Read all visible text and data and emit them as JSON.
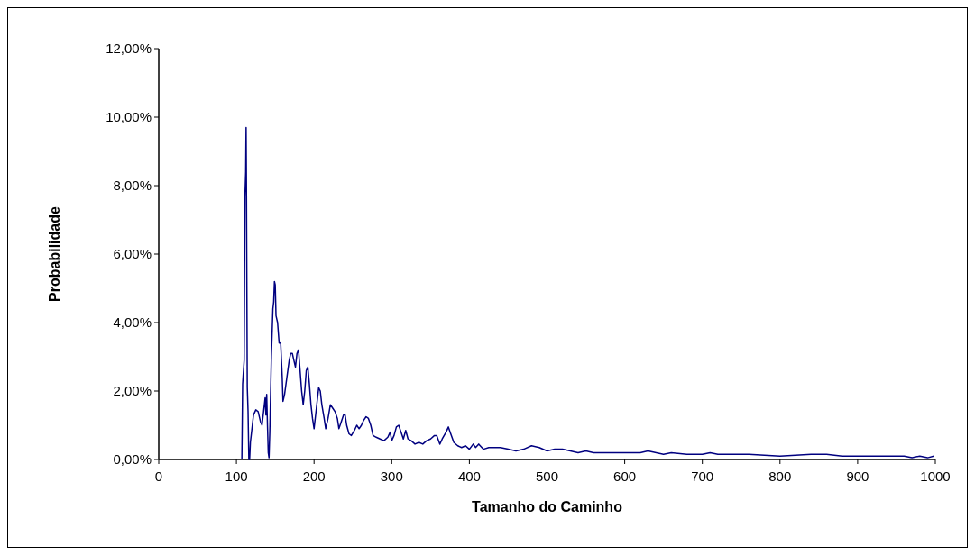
{
  "chart_data": {
    "type": "line",
    "xlabel": "Tamanho do Caminho",
    "ylabel": "Probabilidade",
    "xlim": [
      0,
      1000
    ],
    "xticks": [
      0,
      100,
      200,
      300,
      400,
      500,
      600,
      700,
      800,
      900,
      1000
    ],
    "ylim": [
      0,
      12
    ],
    "yticks": [
      {
        "value": 0,
        "label": "0,00%"
      },
      {
        "value": 2,
        "label": "2,00%"
      },
      {
        "value": 4,
        "label": "4,00%"
      },
      {
        "value": 6,
        "label": "6,00%"
      },
      {
        "value": 8,
        "label": "8,00%"
      },
      {
        "value": 10,
        "label": "10,00%"
      },
      {
        "value": 12,
        "label": "12,00%"
      }
    ],
    "grid": false,
    "marker": "none",
    "line_style": "solid",
    "series": [
      {
        "color": "#000080",
        "x": [
          107,
          108,
          110,
          111,
          112,
          112.5,
          113,
          114,
          115,
          116,
          117,
          118,
          120,
          122,
          125,
          128,
          131,
          133,
          135,
          137,
          138,
          139,
          140,
          141,
          142,
          143,
          145,
          147,
          148,
          149,
          150,
          151,
          153,
          155,
          157,
          159,
          160,
          162,
          165,
          168,
          170,
          172,
          174,
          176,
          178,
          180,
          182,
          184,
          186,
          188,
          190,
          192,
          194,
          196,
          198,
          200,
          203,
          206,
          208,
          210,
          213,
          215,
          218,
          221,
          224,
          227,
          230,
          232,
          235,
          238,
          240,
          242,
          245,
          248,
          252,
          255,
          258,
          261,
          264,
          267,
          270,
          273,
          276,
          280,
          285,
          290,
          295,
          298,
          300,
          303,
          306,
          309,
          312,
          315,
          318,
          321,
          325,
          330,
          335,
          340,
          345,
          350,
          355,
          358,
          362,
          365,
          370,
          373,
          376,
          380,
          385,
          390,
          395,
          400,
          405,
          408,
          412,
          418,
          425,
          440,
          450,
          460,
          470,
          480,
          490,
          500,
          510,
          520,
          530,
          540,
          550,
          560,
          580,
          600,
          620,
          630,
          650,
          660,
          680,
          700,
          710,
          720,
          760,
          800,
          840,
          860,
          880,
          960,
          970,
          980,
          990,
          998
        ],
        "values": [
          0,
          2.2,
          2.9,
          7.7,
          8.4,
          9.7,
          7.7,
          2.1,
          1.4,
          0,
          0,
          0.5,
          0.9,
          1.3,
          1.45,
          1.4,
          1.1,
          1.0,
          1.4,
          1.8,
          1.3,
          1.9,
          1.0,
          0.2,
          0.05,
          0.8,
          3.0,
          4.4,
          4.6,
          5.2,
          5.1,
          4.2,
          4.0,
          3.4,
          3.4,
          2.4,
          1.7,
          1.9,
          2.4,
          2.9,
          3.1,
          3.1,
          2.9,
          2.7,
          3.1,
          3.2,
          2.6,
          2.0,
          1.6,
          2.0,
          2.6,
          2.7,
          2.2,
          1.6,
          1.2,
          0.9,
          1.5,
          2.1,
          2.0,
          1.6,
          1.2,
          0.9,
          1.2,
          1.6,
          1.5,
          1.4,
          1.2,
          0.9,
          1.1,
          1.3,
          1.3,
          1.0,
          0.75,
          0.7,
          0.85,
          1.0,
          0.9,
          1.0,
          1.15,
          1.25,
          1.2,
          1.0,
          0.7,
          0.65,
          0.6,
          0.55,
          0.65,
          0.8,
          0.55,
          0.7,
          0.95,
          1.0,
          0.8,
          0.6,
          0.85,
          0.6,
          0.55,
          0.45,
          0.5,
          0.45,
          0.55,
          0.6,
          0.7,
          0.7,
          0.45,
          0.6,
          0.8,
          0.95,
          0.75,
          0.5,
          0.4,
          0.35,
          0.4,
          0.3,
          0.45,
          0.35,
          0.45,
          0.3,
          0.35,
          0.35,
          0.3,
          0.25,
          0.3,
          0.4,
          0.35,
          0.25,
          0.3,
          0.3,
          0.25,
          0.2,
          0.25,
          0.2,
          0.2,
          0.2,
          0.2,
          0.25,
          0.15,
          0.2,
          0.15,
          0.15,
          0.2,
          0.15,
          0.15,
          0.1,
          0.15,
          0.15,
          0.1,
          0.1,
          0.05,
          0.1,
          0.05,
          0.1
        ]
      }
    ]
  }
}
